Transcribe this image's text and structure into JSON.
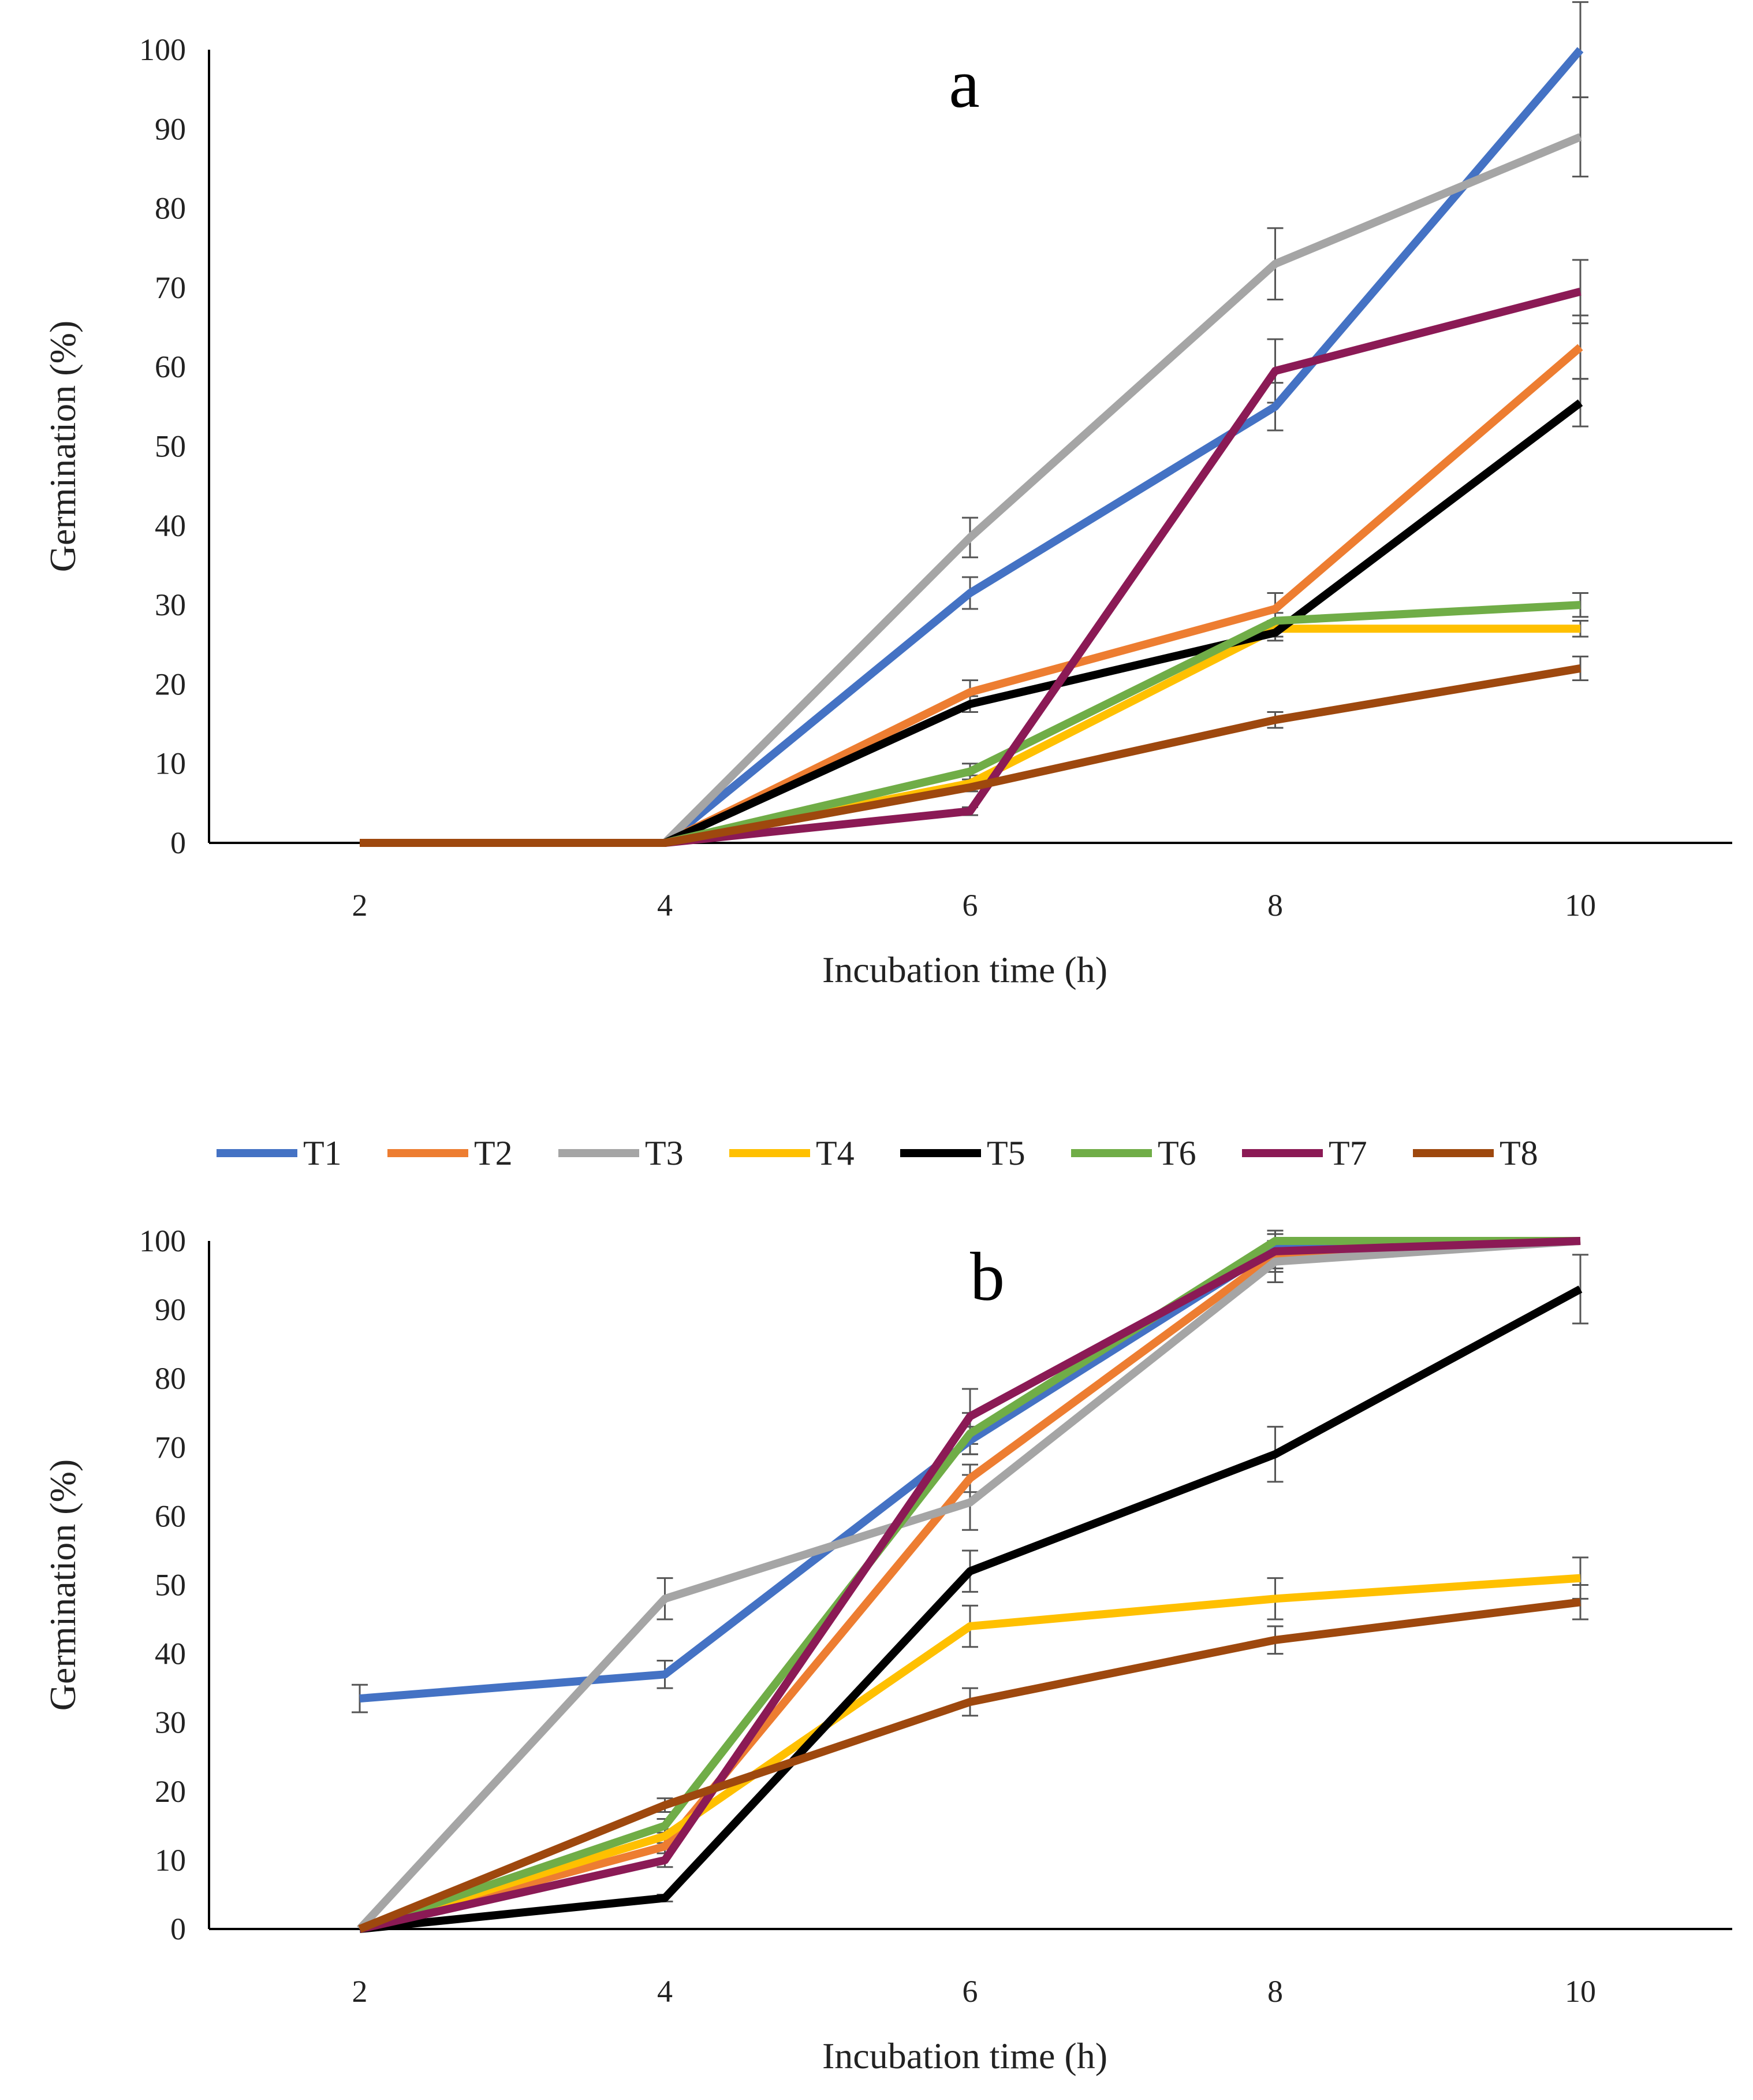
{
  "chart_data": [
    {
      "type": "line",
      "panel_label": "a",
      "xlabel": "Incubation time (h)",
      "ylabel": "Germination (%)",
      "x": [
        2,
        4,
        6,
        8,
        10
      ],
      "ylim": [
        0,
        100
      ],
      "yticks": [
        0,
        10,
        20,
        30,
        40,
        50,
        60,
        70,
        80,
        90,
        100
      ],
      "grid": false,
      "series": [
        {
          "name": "T1",
          "color": "#4472C4",
          "values": [
            0,
            0,
            31.5,
            55,
            100
          ],
          "errors": [
            0,
            0,
            2,
            3,
            6
          ]
        },
        {
          "name": "T2",
          "color": "#ED7D31",
          "values": [
            0,
            0,
            19,
            29.5,
            62.5
          ],
          "errors": [
            0,
            0,
            1.5,
            2,
            4
          ]
        },
        {
          "name": "T3",
          "color": "#A5A5A5",
          "values": [
            0,
            0,
            38.5,
            73,
            89
          ],
          "errors": [
            0,
            0,
            2.5,
            4.5,
            5
          ]
        },
        {
          "name": "T4",
          "color": "#FFC000",
          "values": [
            0,
            0,
            7.5,
            27,
            27
          ],
          "errors": [
            0,
            0,
            1,
            1,
            1
          ]
        },
        {
          "name": "T5",
          "color": "#000000",
          "values": [
            0,
            0,
            17.5,
            26.5,
            55.5
          ],
          "errors": [
            0,
            0,
            1,
            1,
            3
          ]
        },
        {
          "name": "T6",
          "color": "#70AD47",
          "values": [
            0,
            0,
            9,
            28,
            30
          ],
          "errors": [
            0,
            0,
            1,
            1,
            1.5
          ]
        },
        {
          "name": "T7",
          "color": "#8B1A55",
          "values": [
            0,
            0,
            4,
            59.5,
            69.5
          ],
          "errors": [
            0,
            0,
            0.5,
            4,
            4
          ]
        },
        {
          "name": "T8",
          "color": "#9E480E",
          "values": [
            0,
            0,
            7,
            15.5,
            22
          ],
          "errors": [
            0,
            0,
            0.5,
            1,
            1.5
          ]
        }
      ]
    },
    {
      "type": "line",
      "panel_label": "b",
      "xlabel": "Incubation time (h)",
      "ylabel": "Germination (%)",
      "x": [
        2,
        4,
        6,
        8,
        10
      ],
      "ylim": [
        0,
        100
      ],
      "yticks": [
        0,
        10,
        20,
        30,
        40,
        50,
        60,
        70,
        80,
        90,
        100
      ],
      "grid": false,
      "legend_position": "top",
      "series": [
        {
          "name": "T1",
          "color": "#4472C4",
          "values": [
            33.5,
            37,
            71,
            99,
            100
          ],
          "errors": [
            2,
            2,
            2,
            2,
            0
          ]
        },
        {
          "name": "T2",
          "color": "#ED7D31",
          "values": [
            0,
            12,
            65.5,
            98,
            100
          ],
          "errors": [
            0,
            1,
            2,
            2,
            0
          ]
        },
        {
          "name": "T3",
          "color": "#A5A5A5",
          "values": [
            0,
            48,
            62,
            97,
            100
          ],
          "errors": [
            0,
            3,
            4,
            3,
            0
          ]
        },
        {
          "name": "T4",
          "color": "#FFC000",
          "values": [
            0,
            13.5,
            44,
            48,
            51
          ],
          "errors": [
            0,
            1,
            3,
            3,
            3
          ]
        },
        {
          "name": "T5",
          "color": "#000000",
          "values": [
            0,
            4.5,
            52,
            69,
            93
          ],
          "errors": [
            0,
            0.5,
            3,
            4,
            5
          ]
        },
        {
          "name": "T6",
          "color": "#70AD47",
          "values": [
            0,
            15,
            72,
            100,
            100
          ],
          "errors": [
            0,
            1,
            3,
            0,
            0
          ]
        },
        {
          "name": "T7",
          "color": "#8B1A55",
          "values": [
            0,
            10,
            74.5,
            98.5,
            100
          ],
          "errors": [
            0,
            1,
            4,
            3,
            0
          ]
        },
        {
          "name": "T8",
          "color": "#9E480E",
          "values": [
            0,
            18,
            33,
            42,
            47.5
          ],
          "errors": [
            0,
            1,
            2,
            2,
            2.5
          ]
        }
      ]
    }
  ]
}
